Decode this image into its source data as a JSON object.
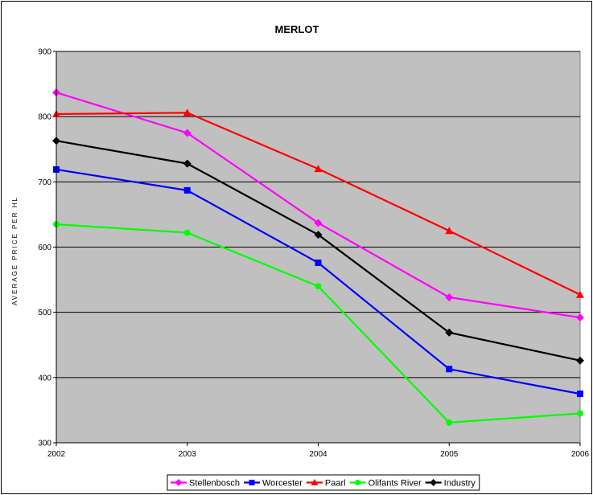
{
  "chart_data": {
    "type": "line",
    "title": "MERLOT",
    "xlabel": "",
    "ylabel": "AVERAGE PRICE PER HL",
    "categories": [
      "2002",
      "2003",
      "2004",
      "2005",
      "2006"
    ],
    "ylim": [
      300,
      900
    ],
    "yticks": [
      300,
      400,
      500,
      600,
      700,
      800,
      900
    ],
    "grid": true,
    "legend_position": "bottom",
    "plot_background": "#C0C0C0",
    "series": [
      {
        "name": "Stellenbosch",
        "color": "#FF00FF",
        "marker": "diamond",
        "values": [
          837,
          775,
          637,
          523,
          492
        ]
      },
      {
        "name": "Worcester",
        "color": "#0000FF",
        "marker": "square",
        "values": [
          719,
          687,
          576,
          413,
          375
        ]
      },
      {
        "name": "Paarl",
        "color": "#FF0000",
        "marker": "triangle",
        "values": [
          804,
          806,
          720,
          625,
          527
        ]
      },
      {
        "name": "Olifants River",
        "color": "#00FF00",
        "marker": "circle",
        "values": [
          635,
          622,
          540,
          331,
          345
        ]
      },
      {
        "name": "Industry",
        "color": "#000000",
        "marker": "diamond",
        "values": [
          763,
          728,
          619,
          469,
          426
        ]
      }
    ]
  }
}
